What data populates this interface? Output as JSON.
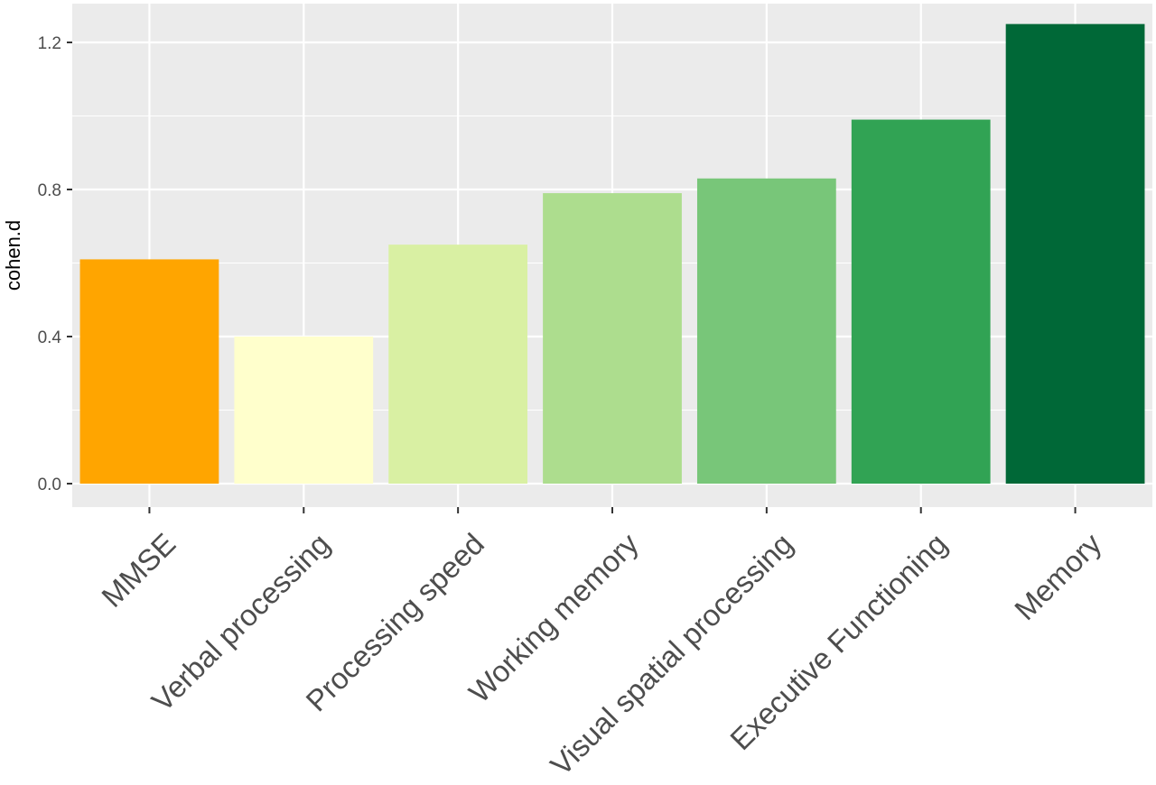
{
  "chart_data": {
    "type": "bar",
    "categories": [
      "MMSE",
      "Verbal processing",
      "Processing speed",
      "Working memory",
      "Visual spatial processing",
      "Executive Functioning",
      "Memory"
    ],
    "values": [
      0.61,
      0.4,
      0.65,
      0.79,
      0.83,
      0.99,
      1.25
    ],
    "colors": [
      "#FFA500",
      "#FFFFCC",
      "#D9F0A3",
      "#ADDD8E",
      "#78C679",
      "#31A354",
      "#006837"
    ],
    "xlabel": "",
    "ylabel": "cohen.d",
    "ylim": [
      -0.06,
      1.31
    ],
    "yticks": [
      0.0,
      0.4,
      0.8,
      1.2
    ],
    "ytick_labels": [
      "0.0",
      "0.4",
      "0.8",
      "1.2"
    ],
    "grid": true,
    "legend": "none"
  }
}
